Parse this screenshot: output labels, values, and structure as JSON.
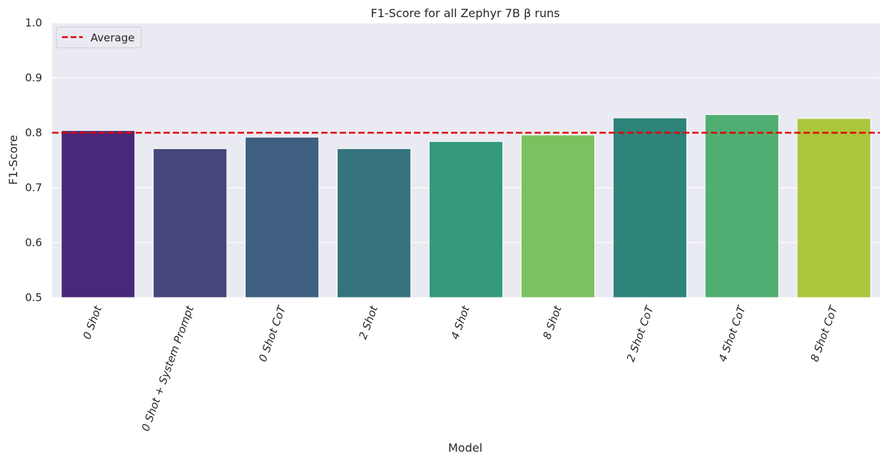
{
  "chart_data": {
    "type": "bar",
    "title": "F1-Score for all Zephyr 7B β runs",
    "xlabel": "Model",
    "ylabel": "F1-Score",
    "ylim": [
      0.5,
      1.0
    ],
    "yticks": [
      "0.5",
      "0.6",
      "0.7",
      "0.8",
      "0.9",
      "1.0"
    ],
    "categories": [
      "0 Shot",
      "0 Shot + System Prompt",
      "0 Shot CoT",
      "2 Shot",
      "4 Shot",
      "8 Shot",
      "2 Shot CoT",
      "4 Shot CoT",
      "8 Shot CoT"
    ],
    "values": [
      0.804,
      0.771,
      0.792,
      0.771,
      0.784,
      0.796,
      0.827,
      0.833,
      0.826
    ],
    "colors": [
      "#482878",
      "#46467c",
      "#3e5f80",
      "#35737e",
      "#33997a",
      "#7cc160",
      "#2e837a",
      "#51ae72",
      "#abc63c"
    ],
    "average": 0.8,
    "average_color": "#e00000",
    "legend": {
      "label": "Average",
      "position": "top-left"
    },
    "background": "#eaeaf2",
    "grid": true
  }
}
